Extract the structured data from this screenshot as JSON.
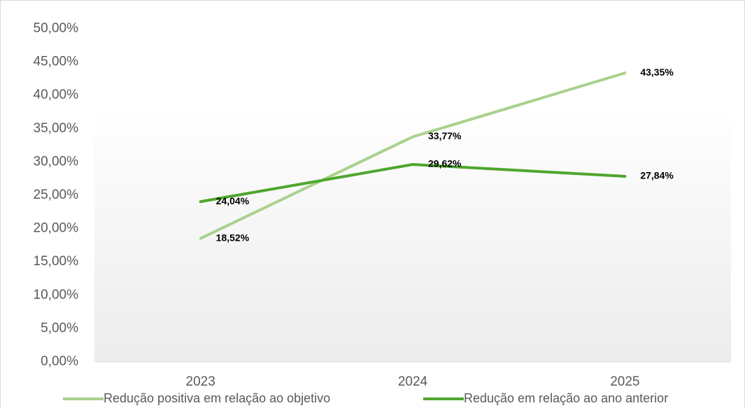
{
  "chart_data": {
    "type": "line",
    "categories": [
      "2023",
      "2024",
      "2025"
    ],
    "series": [
      {
        "name": "Redução positiva em relação ao objetivo",
        "color": "#a9d18e",
        "values": [
          18.52,
          33.77,
          43.35
        ],
        "value_labels": [
          "18,52%",
          "33,77%",
          "43,35%"
        ]
      },
      {
        "name": "Redução em relação ao ano anterior",
        "color": "#4ea72e",
        "values": [
          24.04,
          29.62,
          27.84
        ],
        "value_labels": [
          "24,04%",
          "29,62%",
          "27,84%"
        ]
      }
    ],
    "ylim": [
      0,
      50
    ],
    "yticks": [
      {
        "value": 0,
        "label": "0,00%"
      },
      {
        "value": 5,
        "label": "5,00%"
      },
      {
        "value": 10,
        "label": "10,00%"
      },
      {
        "value": 15,
        "label": "15,00%"
      },
      {
        "value": 20,
        "label": "20,00%"
      },
      {
        "value": 25,
        "label": "25,00%"
      },
      {
        "value": 30,
        "label": "30,00%"
      },
      {
        "value": 35,
        "label": "35,00%"
      },
      {
        "value": 40,
        "label": "40,00%"
      },
      {
        "value": 45,
        "label": "45,00%"
      },
      {
        "value": 50,
        "label": "50,00%"
      }
    ],
    "grid": false,
    "legend": "bottom"
  }
}
